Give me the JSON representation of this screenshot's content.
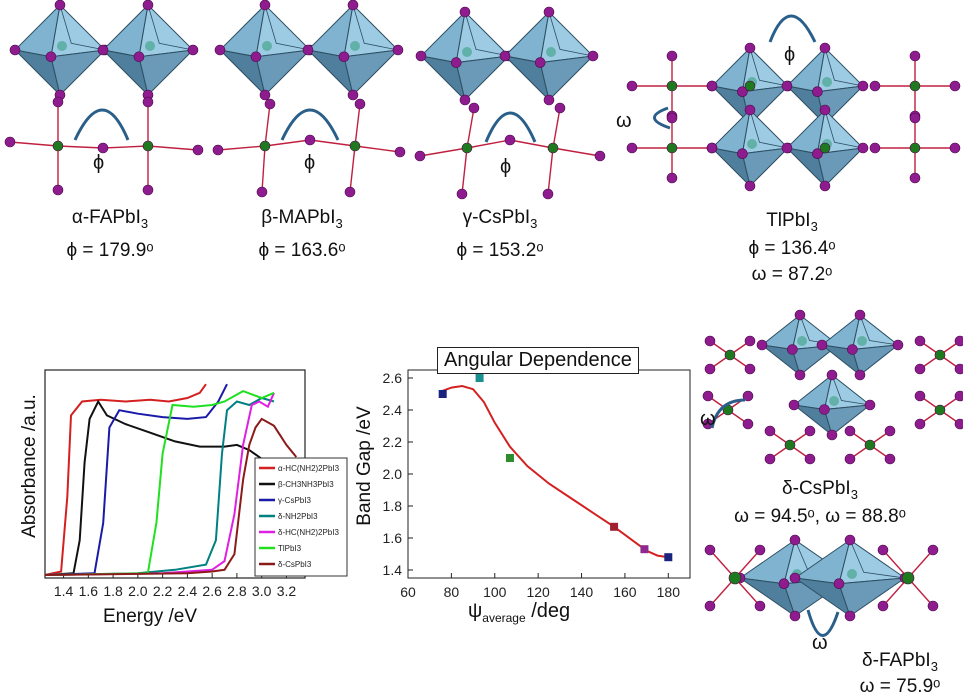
{
  "structures": [
    {
      "name": "α-FAPbI3",
      "line1": "α-FAPbI",
      "sub": "3",
      "phi": "ϕ = 179.9ᵒ"
    },
    {
      "name": "β-MAPbI3",
      "line1": "β-MAPbI",
      "sub": "3",
      "phi": "ϕ = 163.6ᵒ"
    },
    {
      "name": "γ-CsPbI3",
      "line1": "γ-CsPbI",
      "sub": "3",
      "phi": "ϕ = 153.2ᵒ"
    },
    {
      "name": "TlPbI3",
      "line1": "TlPbI",
      "sub": "3",
      "phi": "ϕ = 136.4ᵒ",
      "omega": "ω = 87.2ᵒ"
    },
    {
      "name": "δ-CsPbI3",
      "line1": "δ-CsPbI",
      "sub": "3",
      "omega": "ω = 94.5ᵒ, ω = 88.8ᵒ"
    },
    {
      "name": "δ-FAPbI3",
      "line1": "δ-FAPbI",
      "sub": "3",
      "omega": "ω = 75.9ᵒ"
    }
  ],
  "angle_symbols": {
    "phi": "ϕ",
    "omega": "ω"
  },
  "chart_data": [
    {
      "type": "line",
      "title": "",
      "xlabel": "Energy /eV",
      "ylabel": "Absorbance /a.u.",
      "xlim": [
        1.25,
        3.35
      ],
      "xticks": [
        "1.4",
        "1.6",
        "1.8",
        "2.0",
        "2.2",
        "2.4",
        "2.6",
        "2.8",
        "3.0",
        "3.2"
      ],
      "legend_position": "bottom-right",
      "series": [
        {
          "name": "α-HC(NH2)2PbI3",
          "color": "#d42020",
          "points": [
            [
              1.25,
              0
            ],
            [
              1.38,
              0.02
            ],
            [
              1.43,
              0.45
            ],
            [
              1.46,
              0.92
            ],
            [
              1.55,
              1.0
            ],
            [
              1.7,
              1.01
            ],
            [
              1.9,
              1.0
            ],
            [
              2.1,
              1.01
            ],
            [
              2.25,
              1.0
            ],
            [
              2.4,
              1.02
            ],
            [
              2.5,
              1.05
            ],
            [
              2.55,
              1.1
            ]
          ]
        },
        {
          "name": "β-CH3NH3PbI3",
          "color": "#111111",
          "points": [
            [
              1.25,
              0
            ],
            [
              1.48,
              0.01
            ],
            [
              1.53,
              0.2
            ],
            [
              1.57,
              0.65
            ],
            [
              1.61,
              0.9
            ],
            [
              1.68,
              1.0
            ],
            [
              1.75,
              0.92
            ],
            [
              1.9,
              0.87
            ],
            [
              2.1,
              0.82
            ],
            [
              2.3,
              0.77
            ],
            [
              2.5,
              0.74
            ],
            [
              2.7,
              0.74
            ],
            [
              2.8,
              0.75
            ],
            [
              2.9,
              0.72
            ],
            [
              3.0,
              0.67
            ],
            [
              3.1,
              0.64
            ],
            [
              3.2,
              0.63
            ],
            [
              3.3,
              0.62
            ]
          ]
        },
        {
          "name": "γ-CsPbI3",
          "color": "#1a1aa8",
          "points": [
            [
              1.25,
              0
            ],
            [
              1.65,
              0.01
            ],
            [
              1.72,
              0.3
            ],
            [
              1.77,
              0.85
            ],
            [
              1.85,
              0.95
            ],
            [
              2.0,
              0.93
            ],
            [
              2.2,
              0.91
            ],
            [
              2.4,
              0.9
            ],
            [
              2.55,
              0.91
            ],
            [
              2.65,
              1.0
            ],
            [
              2.72,
              1.1
            ]
          ]
        },
        {
          "name": "δ-NH2PbI3",
          "color": "#008080",
          "points": [
            [
              1.25,
              0
            ],
            [
              2.0,
              0.01
            ],
            [
              2.3,
              0.03
            ],
            [
              2.55,
              0.06
            ],
            [
              2.63,
              0.2
            ],
            [
              2.68,
              0.7
            ],
            [
              2.72,
              0.95
            ],
            [
              2.8,
              1.0
            ],
            [
              2.9,
              0.98
            ],
            [
              3.0,
              1.02
            ],
            [
              3.1,
              1.0
            ]
          ]
        },
        {
          "name": "δ-HC(NH2)2PbI3",
          "color": "#e020e0",
          "points": [
            [
              1.25,
              0
            ],
            [
              2.2,
              0.01
            ],
            [
              2.6,
              0.03
            ],
            [
              2.7,
              0.08
            ],
            [
              2.78,
              0.35
            ],
            [
              2.85,
              0.75
            ],
            [
              2.92,
              0.98
            ],
            [
              2.98,
              1.0
            ],
            [
              3.05,
              0.97
            ],
            [
              3.1,
              1.05
            ]
          ]
        },
        {
          "name": "TlPbI3",
          "color": "#20e020",
          "points": [
            [
              1.25,
              0
            ],
            [
              2.08,
              0.01
            ],
            [
              2.15,
              0.3
            ],
            [
              2.2,
              0.7
            ],
            [
              2.28,
              0.98
            ],
            [
              2.45,
              0.97
            ],
            [
              2.6,
              0.98
            ],
            [
              2.7,
              1.0
            ],
            [
              2.85,
              1.06
            ],
            [
              3.0,
              1.02
            ],
            [
              3.1,
              1.05
            ]
          ]
        },
        {
          "name": "δ-CsPbI3",
          "color": "#8b1a1a",
          "points": [
            [
              1.25,
              0
            ],
            [
              2.4,
              0.01
            ],
            [
              2.6,
              0.02
            ],
            [
              2.7,
              0.03
            ],
            [
              2.78,
              0.12
            ],
            [
              2.85,
              0.55
            ],
            [
              2.9,
              0.75
            ],
            [
              2.95,
              0.85
            ],
            [
              3.0,
              0.9
            ],
            [
              3.1,
              0.86
            ],
            [
              3.2,
              0.75
            ],
            [
              3.28,
              0.68
            ]
          ]
        }
      ]
    },
    {
      "type": "scatter",
      "title": "Angular Dependence",
      "xlabel": "ψ",
      "xlabel_sub": "average",
      "xlabel_unit": " /deg",
      "ylabel": "Band Gap /eV",
      "xlim": [
        60,
        190
      ],
      "ylim": [
        1.35,
        2.65
      ],
      "xticks": [
        60,
        80,
        100,
        120,
        140,
        160,
        180
      ],
      "yticks": [
        "1.4",
        "1.6",
        "1.8",
        "2.0",
        "2.2",
        "2.4",
        "2.6"
      ],
      "points": [
        {
          "x": 76,
          "y": 2.5,
          "color": "#1a237e"
        },
        {
          "x": 93,
          "y": 2.6,
          "color": "#1a9090"
        },
        {
          "x": 107,
          "y": 2.1,
          "color": "#2e8b2e"
        },
        {
          "x": 155,
          "y": 1.67,
          "color": "#a02030"
        },
        {
          "x": 169,
          "y": 1.53,
          "color": "#8e2a8e"
        },
        {
          "x": 180,
          "y": 1.48,
          "color": "#1a237e"
        }
      ],
      "fit": {
        "color": "#d42020",
        "points": [
          [
            76,
            2.52
          ],
          [
            80,
            2.54
          ],
          [
            85,
            2.55
          ],
          [
            90,
            2.53
          ],
          [
            95,
            2.45
          ],
          [
            100,
            2.32
          ],
          [
            107,
            2.17
          ],
          [
            115,
            2.05
          ],
          [
            125,
            1.94
          ],
          [
            135,
            1.85
          ],
          [
            145,
            1.76
          ],
          [
            155,
            1.67
          ],
          [
            165,
            1.57
          ],
          [
            170,
            1.52
          ],
          [
            175,
            1.49
          ],
          [
            180,
            1.48
          ]
        ]
      }
    }
  ]
}
